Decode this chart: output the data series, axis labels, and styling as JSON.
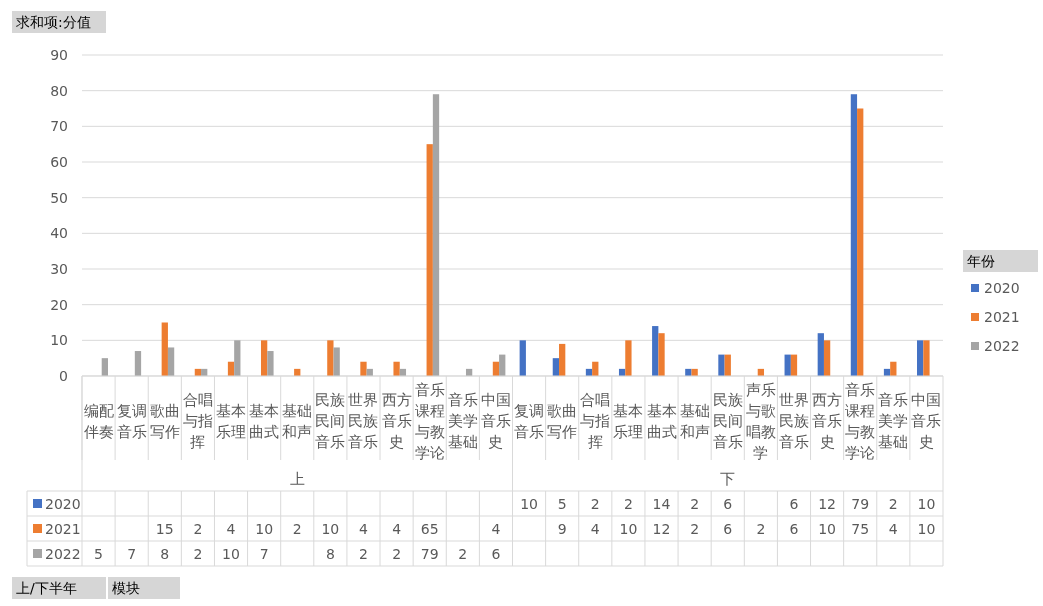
{
  "chart_data": {
    "type": "bar",
    "categories": [
      "编配伴奏",
      "复调音乐",
      "歌曲写作",
      "合唱与指挥",
      "基本乐理",
      "基本曲式",
      "基础和声",
      "民族民间音乐",
      "世界民族音乐",
      "西方音乐史",
      "音乐课程与教学论",
      "音乐美学基础",
      "中国音乐史",
      "复调音乐",
      "歌曲写作",
      "合唱与指挥",
      "基本乐理",
      "基本曲式",
      "基础和声",
      "民族民间音乐",
      "声乐与歌唱教学",
      "世界民族音乐",
      "西方音乐史",
      "音乐课程与教学论",
      "音乐美学基础",
      "中国音乐史"
    ],
    "series": [
      {
        "name": "2020",
        "color": "#4472c4",
        "values": [
          null,
          null,
          null,
          null,
          null,
          null,
          null,
          null,
          null,
          null,
          null,
          null,
          null,
          10,
          5,
          2,
          2,
          14,
          2,
          6,
          null,
          6,
          12,
          79,
          2,
          10
        ]
      },
      {
        "name": "2021",
        "color": "#ed7d31",
        "values": [
          null,
          null,
          15,
          2,
          4,
          10,
          2,
          10,
          4,
          4,
          65,
          null,
          4,
          null,
          9,
          4,
          10,
          12,
          2,
          6,
          2,
          6,
          10,
          75,
          4,
          10
        ]
      },
      {
        "name": "2022",
        "color": "#a5a5a5",
        "values": [
          5,
          7,
          8,
          2,
          10,
          7,
          null,
          8,
          2,
          2,
          79,
          2,
          6,
          null,
          null,
          null,
          null,
          null,
          null,
          null,
          null,
          null,
          null,
          null,
          null,
          null
        ]
      }
    ],
    "ylim": [
      0,
      90
    ],
    "yticks": [
      0,
      10,
      20,
      30,
      40,
      50,
      60,
      70,
      80,
      90
    ],
    "grid": "y",
    "legend": "right",
    "legend_title": "年份",
    "data_labels": true,
    "annotations": [
      "求和项:分值",
      "上",
      "下",
      "上/下半年",
      "模块"
    ]
  }
}
